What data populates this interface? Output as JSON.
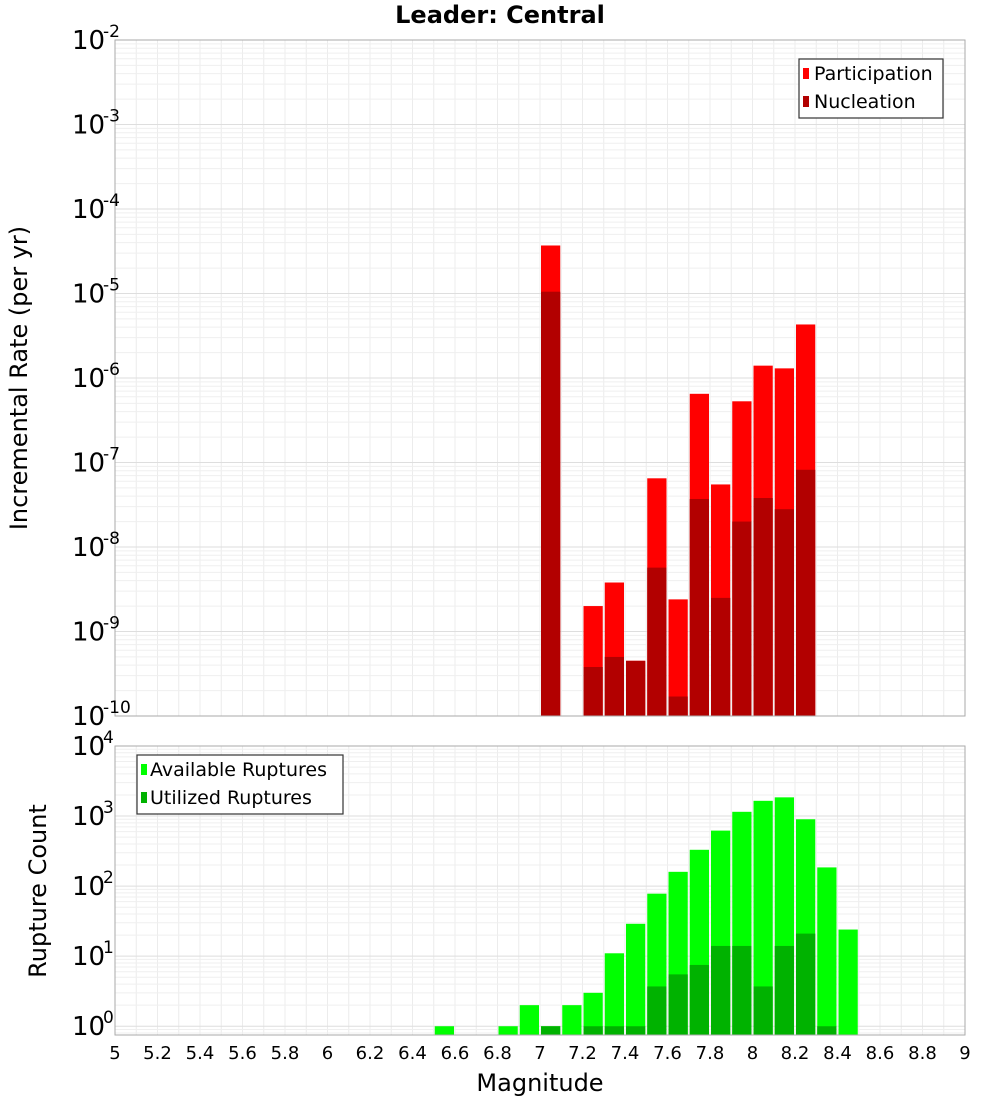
{
  "figure": {
    "title": "Leader: Central",
    "xlabel": "Magnitude"
  },
  "legends": {
    "top": [
      "Participation",
      "Nucleation"
    ],
    "bottom": [
      "Available Ruptures",
      "Utilized Ruptures"
    ]
  },
  "chart_data": [
    {
      "type": "bar",
      "title": "Leader: Central",
      "xlabel": "Magnitude",
      "ylabel": "Incremental Rate (per yr)",
      "yscale": "log",
      "ylim": [
        1e-10,
        0.01
      ],
      "xlim": [
        5,
        9
      ],
      "x_ticks": [
        5,
        5.2,
        5.4,
        5.6,
        5.8,
        6,
        6.2,
        6.4,
        6.6,
        6.8,
        7,
        7.2,
        7.4,
        7.6,
        7.8,
        8,
        8.2,
        8.4,
        8.6,
        8.8,
        9
      ],
      "y_ticks": [
        {
          "base": "10",
          "exp": "-10",
          "value": 1e-10
        },
        {
          "base": "10",
          "exp": "-9",
          "value": 1e-09
        },
        {
          "base": "10",
          "exp": "-8",
          "value": 1e-08
        },
        {
          "base": "10",
          "exp": "-7",
          "value": 1e-07
        },
        {
          "base": "10",
          "exp": "-6",
          "value": 1e-06
        },
        {
          "base": "10",
          "exp": "-5",
          "value": 1e-05
        },
        {
          "base": "10",
          "exp": "-4",
          "value": 0.0001
        },
        {
          "base": "10",
          "exp": "-3",
          "value": 0.001
        },
        {
          "base": "10",
          "exp": "-2",
          "value": 0.01
        }
      ],
      "grid": true,
      "legend_position": "top-right",
      "x": [
        7.05,
        7.25,
        7.35,
        7.45,
        7.55,
        7.65,
        7.75,
        7.85,
        7.95,
        8.05,
        8.15,
        8.25
      ],
      "series": [
        {
          "name": "Participation",
          "color": "#ff0000",
          "values": [
            3.7e-05,
            2e-09,
            3.8e-09,
            4.5e-10,
            6.5e-08,
            2.4e-09,
            6.5e-07,
            5.5e-08,
            5.3e-07,
            1.4e-06,
            1.3e-06,
            4.3e-06
          ]
        },
        {
          "name": "Nucleation",
          "color": "#b20000",
          "values": [
            1.05e-05,
            3.8e-10,
            5e-10,
            4.5e-10,
            5.7e-09,
            1.7e-10,
            3.7e-08,
            2.5e-09,
            2e-08,
            3.8e-08,
            2.8e-08,
            8.2e-08
          ]
        }
      ]
    },
    {
      "type": "bar",
      "xlabel": "Magnitude",
      "ylabel": "Rupture Count",
      "yscale": "log",
      "ylim": [
        0.75,
        10000
      ],
      "xlim": [
        5,
        9
      ],
      "x_ticks": [
        5,
        5.2,
        5.4,
        5.6,
        5.8,
        6,
        6.2,
        6.4,
        6.6,
        6.8,
        7,
        7.2,
        7.4,
        7.6,
        7.8,
        8,
        8.2,
        8.4,
        8.6,
        8.8,
        9
      ],
      "y_ticks": [
        {
          "base": "10",
          "exp": "0",
          "value": 1
        },
        {
          "base": "10",
          "exp": "1",
          "value": 10
        },
        {
          "base": "10",
          "exp": "2",
          "value": 100
        },
        {
          "base": "10",
          "exp": "3",
          "value": 1000
        },
        {
          "base": "10",
          "exp": "4",
          "value": 10000
        }
      ],
      "grid": true,
      "legend_position": "top-left",
      "x": [
        6.55,
        6.85,
        6.95,
        7.05,
        7.15,
        7.25,
        7.35,
        7.45,
        7.55,
        7.65,
        7.75,
        7.85,
        7.95,
        8.05,
        8.15,
        8.25,
        8.35,
        8.45
      ],
      "series": [
        {
          "name": "Available Ruptures",
          "color": "#00ff00",
          "values": [
            1,
            1,
            2,
            1,
            2,
            3,
            11,
            29,
            78,
            160,
            330,
            620,
            1150,
            1650,
            1850,
            900,
            185,
            24
          ]
        },
        {
          "name": "Utilized Ruptures",
          "color": "#00b200",
          "values": [
            0,
            0,
            0,
            1,
            0,
            1,
            1,
            1,
            3.7,
            5.5,
            7.5,
            14,
            14,
            3.7,
            14,
            21,
            1,
            0
          ]
        }
      ]
    }
  ]
}
